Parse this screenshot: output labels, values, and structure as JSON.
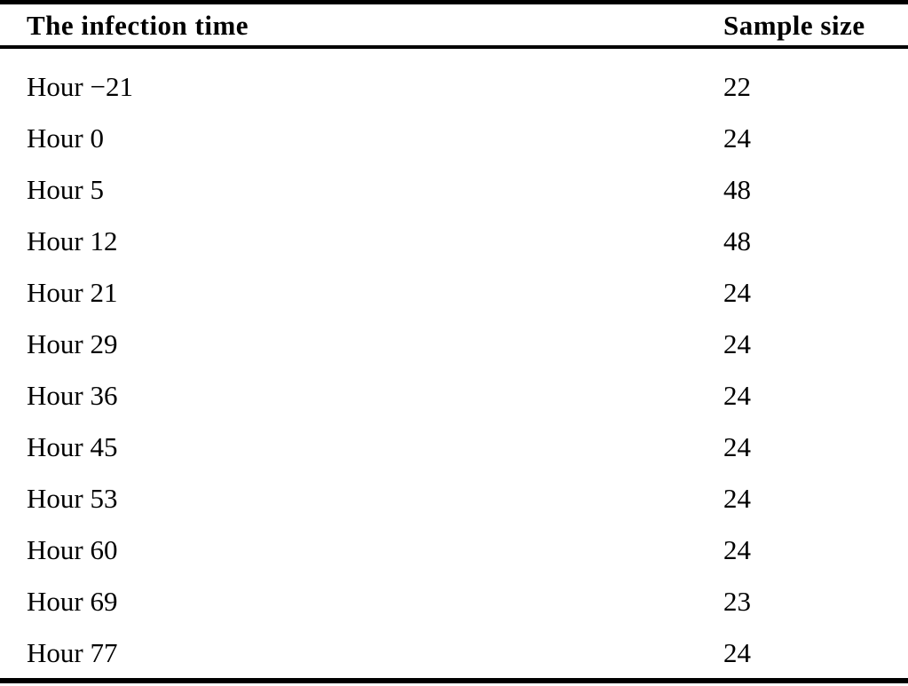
{
  "page": {
    "background": "#ffffff",
    "text_color": "#000000",
    "rule_color": "#000000"
  },
  "table": {
    "columns": [
      {
        "key": "time",
        "label": "The infection time"
      },
      {
        "key": "sample_size",
        "label": "Sample size"
      }
    ],
    "rows": [
      {
        "time": "Hour −21",
        "sample_size": "22"
      },
      {
        "time": "Hour 0",
        "sample_size": "24"
      },
      {
        "time": "Hour 5",
        "sample_size": "48"
      },
      {
        "time": "Hour 12",
        "sample_size": "48"
      },
      {
        "time": "Hour 21",
        "sample_size": "24"
      },
      {
        "time": "Hour 29",
        "sample_size": "24"
      },
      {
        "time": "Hour 36",
        "sample_size": "24"
      },
      {
        "time": "Hour 45",
        "sample_size": "24"
      },
      {
        "time": "Hour 53",
        "sample_size": "24"
      },
      {
        "time": "Hour 60",
        "sample_size": "24"
      },
      {
        "time": "Hour 69",
        "sample_size": "23"
      },
      {
        "time": "Hour 77",
        "sample_size": "24"
      }
    ]
  },
  "chart_data": {
    "type": "table",
    "title": "",
    "columns": [
      "The infection time",
      "Sample size"
    ],
    "rows": [
      [
        "Hour −21",
        22
      ],
      [
        "Hour 0",
        24
      ],
      [
        "Hour 5",
        48
      ],
      [
        "Hour 12",
        48
      ],
      [
        "Hour 21",
        24
      ],
      [
        "Hour 29",
        24
      ],
      [
        "Hour 36",
        24
      ],
      [
        "Hour 45",
        24
      ],
      [
        "Hour 53",
        24
      ],
      [
        "Hour 60",
        24
      ],
      [
        "Hour 69",
        23
      ],
      [
        "Hour 77",
        24
      ]
    ]
  }
}
